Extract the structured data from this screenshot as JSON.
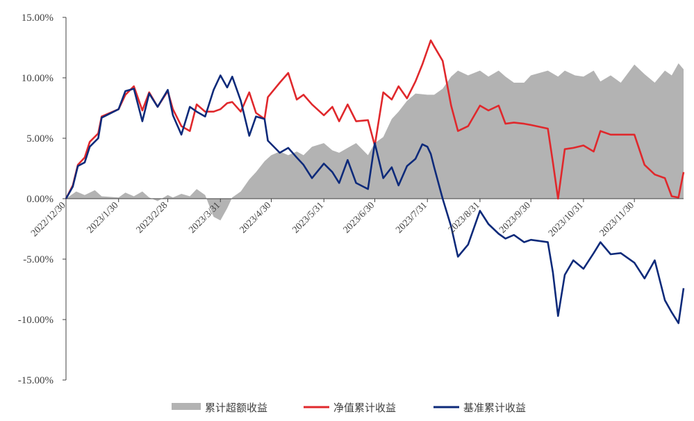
{
  "chart_data": {
    "type": "line",
    "colors": {
      "excess": "#b3b3b3",
      "nav": "#e0282c",
      "benchmark": "#0d2a7a",
      "axis": "#404040"
    },
    "ylim": [
      -15,
      15
    ],
    "yticks": [
      -15,
      -10,
      -5,
      0,
      5,
      10,
      15
    ],
    "ytick_labels": [
      "-15.00%",
      "-10.00%",
      "-5.00%",
      "0.00%",
      "5.00%",
      "10.00%",
      "15.00%"
    ],
    "xticks": [
      "2022-12-30",
      "2023-01-30",
      "2023-02-28",
      "2023-03-31",
      "2023-04-30",
      "2023-05-31",
      "2023-06-30",
      "2023-07-31",
      "2023-08-31",
      "2023-09-30",
      "2023-10-31",
      "2023-11-30"
    ],
    "xtick_labels": [
      "2022/12/30",
      "2023/1/30",
      "2023/2/28",
      "2023/3/31",
      "2023/4/30",
      "2023/5/31",
      "2023/6/30",
      "2023/7/31",
      "2023/8/31",
      "2023/9/30",
      "2023/10/31",
      "2023/11/30"
    ],
    "x_end": "2023-12-29",
    "legend": [
      "累计超额收益",
      "净值累计收益",
      "基准累计收益"
    ],
    "series": [
      {
        "name": "累计超额收益",
        "kind": "area",
        "x": [
          "2022-12-30",
          "2023-01-05",
          "2023-01-10",
          "2023-01-16",
          "2023-01-20",
          "2023-01-30",
          "2023-02-03",
          "2023-02-08",
          "2023-02-13",
          "2023-02-17",
          "2023-02-22",
          "2023-02-28",
          "2023-03-03",
          "2023-03-08",
          "2023-03-13",
          "2023-03-17",
          "2023-03-22",
          "2023-03-27",
          "2023-03-31",
          "2023-04-04",
          "2023-04-07",
          "2023-04-12",
          "2023-04-17",
          "2023-04-21",
          "2023-04-26",
          "2023-04-30",
          "2023-05-05",
          "2023-05-10",
          "2023-05-15",
          "2023-05-19",
          "2023-05-24",
          "2023-05-31",
          "2023-06-05",
          "2023-06-09",
          "2023-06-14",
          "2023-06-19",
          "2023-06-26",
          "2023-06-30",
          "2023-07-05",
          "2023-07-10",
          "2023-07-14",
          "2023-07-19",
          "2023-07-24",
          "2023-07-31",
          "2023-08-04",
          "2023-08-09",
          "2023-08-14",
          "2023-08-18",
          "2023-08-24",
          "2023-08-31",
          "2023-09-05",
          "2023-09-11",
          "2023-09-15",
          "2023-09-20",
          "2023-09-26",
          "2023-09-30",
          "2023-10-10",
          "2023-10-16",
          "2023-10-20",
          "2023-10-26",
          "2023-10-31",
          "2023-11-06",
          "2023-11-10",
          "2023-11-16",
          "2023-11-22",
          "2023-11-30",
          "2023-12-06",
          "2023-12-12",
          "2023-12-18",
          "2023-12-22",
          "2023-12-26",
          "2023-12-29"
        ],
        "values": [
          0,
          0.6,
          0.3,
          0.7,
          0.2,
          0.1,
          0.5,
          0.2,
          0.6,
          0.1,
          -0.2,
          0.3,
          0.1,
          0.4,
          0.2,
          0.8,
          0.3,
          -1.5,
          -1.8,
          -0.8,
          0.1,
          0.6,
          1.6,
          2.2,
          3.1,
          3.6,
          3.9,
          3.6,
          3.9,
          3.6,
          4.3,
          4.6,
          4.0,
          3.8,
          4.2,
          4.6,
          3.6,
          4.6,
          5.1,
          6.6,
          7.2,
          8.1,
          8.7,
          8.6,
          8.6,
          9.1,
          10.1,
          10.6,
          10.2,
          10.6,
          10.1,
          10.6,
          10.1,
          9.6,
          9.6,
          10.2,
          10.6,
          10.1,
          10.6,
          10.2,
          10.1,
          10.6,
          9.7,
          10.2,
          9.6,
          11.1,
          10.3,
          9.6,
          10.6,
          10.2,
          11.2,
          10.7
        ]
      },
      {
        "name": "净值累计收益",
        "kind": "line",
        "x": [
          "2022-12-30",
          "2023-01-03",
          "2023-01-06",
          "2023-01-10",
          "2023-01-13",
          "2023-01-18",
          "2023-01-20",
          "2023-01-30",
          "2023-02-03",
          "2023-02-08",
          "2023-02-13",
          "2023-02-17",
          "2023-02-22",
          "2023-02-28",
          "2023-03-03",
          "2023-03-08",
          "2023-03-13",
          "2023-03-17",
          "2023-03-22",
          "2023-03-27",
          "2023-03-31",
          "2023-04-04",
          "2023-04-07",
          "2023-04-12",
          "2023-04-17",
          "2023-04-21",
          "2023-04-26",
          "2023-04-28",
          "2023-05-05",
          "2023-05-10",
          "2023-05-15",
          "2023-05-19",
          "2023-05-24",
          "2023-05-31",
          "2023-06-05",
          "2023-06-09",
          "2023-06-14",
          "2023-06-19",
          "2023-06-26",
          "2023-06-30",
          "2023-07-05",
          "2023-07-10",
          "2023-07-14",
          "2023-07-19",
          "2023-07-24",
          "2023-07-28",
          "2023-07-31",
          "2023-08-02",
          "2023-08-04",
          "2023-08-09",
          "2023-08-14",
          "2023-08-18",
          "2023-08-24",
          "2023-08-31",
          "2023-09-05",
          "2023-09-11",
          "2023-09-15",
          "2023-09-20",
          "2023-09-26",
          "2023-09-30",
          "2023-10-10",
          "2023-10-13",
          "2023-10-16",
          "2023-10-20",
          "2023-10-25",
          "2023-10-31",
          "2023-11-06",
          "2023-11-10",
          "2023-11-16",
          "2023-11-22",
          "2023-11-30",
          "2023-12-06",
          "2023-12-12",
          "2023-12-18",
          "2023-12-22",
          "2023-12-26",
          "2023-12-29"
        ],
        "values": [
          0,
          1.1,
          2.8,
          3.4,
          4.7,
          5.4,
          6.8,
          7.4,
          8.6,
          9.3,
          7.3,
          8.8,
          7.6,
          8.9,
          7.4,
          6.0,
          5.6,
          7.8,
          7.2,
          7.2,
          7.4,
          7.9,
          8.0,
          7.2,
          8.8,
          7.1,
          6.6,
          8.4,
          9.6,
          10.4,
          8.2,
          8.6,
          7.8,
          6.9,
          7.6,
          6.4,
          7.8,
          6.4,
          6.5,
          4.4,
          8.8,
          8.2,
          9.3,
          8.3,
          9.7,
          11.1,
          12.3,
          13.1,
          12.6,
          11.4,
          7.7,
          5.6,
          6.0,
          7.7,
          7.3,
          7.7,
          6.2,
          6.3,
          6.2,
          6.1,
          5.8,
          3.0,
          0.0,
          4.1,
          4.2,
          4.4,
          3.9,
          5.6,
          5.3,
          5.3,
          5.3,
          2.8,
          2.0,
          1.7,
          0.2,
          0.1,
          2.2
        ]
      },
      {
        "name": "基准累计收益",
        "kind": "line",
        "x": [
          "2022-12-30",
          "2023-01-03",
          "2023-01-06",
          "2023-01-10",
          "2023-01-13",
          "2023-01-18",
          "2023-01-20",
          "2023-01-30",
          "2023-02-03",
          "2023-02-08",
          "2023-02-13",
          "2023-02-17",
          "2023-02-22",
          "2023-02-28",
          "2023-03-03",
          "2023-03-08",
          "2023-03-13",
          "2023-03-17",
          "2023-03-22",
          "2023-03-27",
          "2023-03-31",
          "2023-04-04",
          "2023-04-07",
          "2023-04-12",
          "2023-04-17",
          "2023-04-21",
          "2023-04-26",
          "2023-04-28",
          "2023-05-05",
          "2023-05-10",
          "2023-05-15",
          "2023-05-19",
          "2023-05-24",
          "2023-05-31",
          "2023-06-05",
          "2023-06-09",
          "2023-06-14",
          "2023-06-19",
          "2023-06-26",
          "2023-06-30",
          "2023-07-05",
          "2023-07-10",
          "2023-07-14",
          "2023-07-19",
          "2023-07-24",
          "2023-07-28",
          "2023-07-31",
          "2023-08-02",
          "2023-08-04",
          "2023-08-09",
          "2023-08-14",
          "2023-08-18",
          "2023-08-24",
          "2023-08-31",
          "2023-09-05",
          "2023-09-11",
          "2023-09-15",
          "2023-09-20",
          "2023-09-26",
          "2023-09-30",
          "2023-10-10",
          "2023-10-13",
          "2023-10-16",
          "2023-10-20",
          "2023-10-25",
          "2023-10-31",
          "2023-11-06",
          "2023-11-10",
          "2023-11-16",
          "2023-11-22",
          "2023-11-30",
          "2023-12-06",
          "2023-12-12",
          "2023-12-18",
          "2023-12-22",
          "2023-12-26",
          "2023-12-29"
        ],
        "values": [
          0,
          1.0,
          2.7,
          3.0,
          4.3,
          5.0,
          6.7,
          7.4,
          8.9,
          9.1,
          6.4,
          8.7,
          7.6,
          9.0,
          6.9,
          5.3,
          7.6,
          7.2,
          6.8,
          9.0,
          10.2,
          9.2,
          10.1,
          8.1,
          5.2,
          6.8,
          6.6,
          4.8,
          3.8,
          4.2,
          3.4,
          2.8,
          1.7,
          2.9,
          2.2,
          1.3,
          3.2,
          1.3,
          0.8,
          4.6,
          1.7,
          2.6,
          1.1,
          2.7,
          3.3,
          4.5,
          4.3,
          3.7,
          2.6,
          0.0,
          -2.3,
          -4.8,
          -3.8,
          -1.0,
          -2.1,
          -2.9,
          -3.3,
          -3.0,
          -3.6,
          -3.4,
          -3.6,
          -6.1,
          -9.7,
          -6.3,
          -5.1,
          -5.8,
          -4.5,
          -3.6,
          -4.6,
          -4.5,
          -5.3,
          -6.6,
          -5.1,
          -8.4,
          -9.4,
          -10.3,
          -7.4
        ]
      }
    ]
  }
}
